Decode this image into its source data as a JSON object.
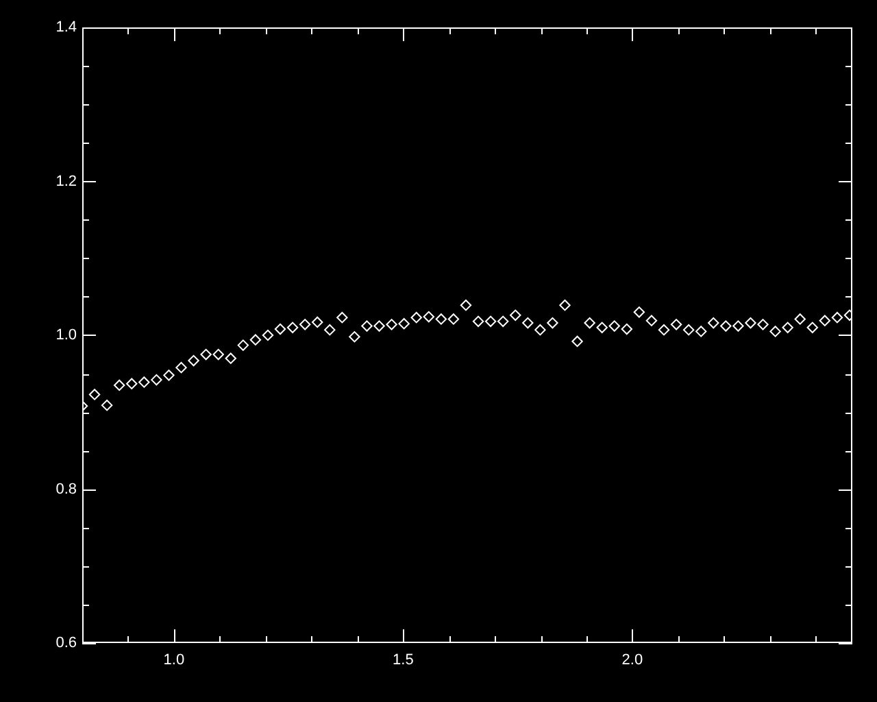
{
  "chart_data": {
    "type": "scatter",
    "marker": "diamond",
    "legend": false,
    "grid": false,
    "x": [
      0.8,
      0.827,
      0.854,
      0.881,
      0.908,
      0.935,
      0.962,
      0.989,
      1.016,
      1.043,
      1.07,
      1.097,
      1.124,
      1.151,
      1.178,
      1.205,
      1.232,
      1.259,
      1.286,
      1.313,
      1.34,
      1.367,
      1.394,
      1.421,
      1.448,
      1.475,
      1.502,
      1.529,
      1.556,
      1.583,
      1.61,
      1.637,
      1.664,
      1.691,
      1.718,
      1.745,
      1.772,
      1.799,
      1.826,
      1.853,
      1.88,
      1.907,
      1.934,
      1.961,
      1.988,
      2.015,
      2.042,
      2.069,
      2.096,
      2.123,
      2.15,
      2.177,
      2.204,
      2.231,
      2.258,
      2.285,
      2.312,
      2.339,
      2.366,
      2.393,
      2.42,
      2.447,
      2.474
    ],
    "series": [
      {
        "color": "#ffffff",
        "values": [
          0.908,
          0.923,
          0.909,
          0.935,
          0.937,
          0.939,
          0.942,
          0.948,
          0.958,
          0.967,
          0.975,
          0.975,
          0.97,
          0.987,
          0.994,
          1.0,
          1.008,
          1.01,
          1.014,
          1.017,
          1.007,
          1.023,
          0.998,
          1.012,
          1.012,
          1.014,
          1.015,
          1.023,
          1.024,
          1.021,
          1.021,
          1.039,
          1.018,
          1.018,
          1.018,
          1.026,
          1.016,
          1.007,
          1.016,
          1.039,
          0.992,
          1.016,
          1.01,
          1.012,
          1.008,
          1.03,
          1.019,
          1.007,
          1.014,
          1.007,
          1.005,
          1.016,
          1.012,
          1.012,
          1.016,
          1.014,
          1.005,
          1.01,
          1.021,
          1.01,
          1.019,
          1.023,
          1.026
        ]
      }
    ],
    "xlim": [
      0.8,
      2.48
    ],
    "xticks": [
      {
        "value": 0.9,
        "label": null
      },
      {
        "value": 1.0,
        "label": "1.0"
      },
      {
        "value": 1.1,
        "label": null
      },
      {
        "value": 1.2,
        "label": null
      },
      {
        "value": 1.3,
        "label": null
      },
      {
        "value": 1.4,
        "label": null
      },
      {
        "value": 1.5,
        "label": "1.5"
      },
      {
        "value": 1.6,
        "label": null
      },
      {
        "value": 1.7,
        "label": null
      },
      {
        "value": 1.8,
        "label": null
      },
      {
        "value": 1.9,
        "label": null
      },
      {
        "value": 2.0,
        "label": "2.0"
      },
      {
        "value": 2.1,
        "label": null
      },
      {
        "value": 2.2,
        "label": null
      },
      {
        "value": 2.3,
        "label": null
      },
      {
        "value": 2.4,
        "label": null
      }
    ],
    "ylim": [
      0.6,
      1.4
    ],
    "yticks": [
      {
        "value": 0.6,
        "label": "0.6"
      },
      {
        "value": 0.65,
        "label": null
      },
      {
        "value": 0.7,
        "label": null
      },
      {
        "value": 0.75,
        "label": null
      },
      {
        "value": 0.8,
        "label": "0.8"
      },
      {
        "value": 0.85,
        "label": null
      },
      {
        "value": 0.9,
        "label": null
      },
      {
        "value": 0.95,
        "label": null
      },
      {
        "value": 1.0,
        "label": "1.0"
      },
      {
        "value": 1.05,
        "label": null
      },
      {
        "value": 1.1,
        "label": null
      },
      {
        "value": 1.15,
        "label": null
      },
      {
        "value": 1.2,
        "label": "1.2"
      },
      {
        "value": 1.25,
        "label": null
      },
      {
        "value": 1.3,
        "label": null
      },
      {
        "value": 1.35,
        "label": null
      },
      {
        "value": 1.4,
        "label": "1.4"
      }
    ]
  }
}
